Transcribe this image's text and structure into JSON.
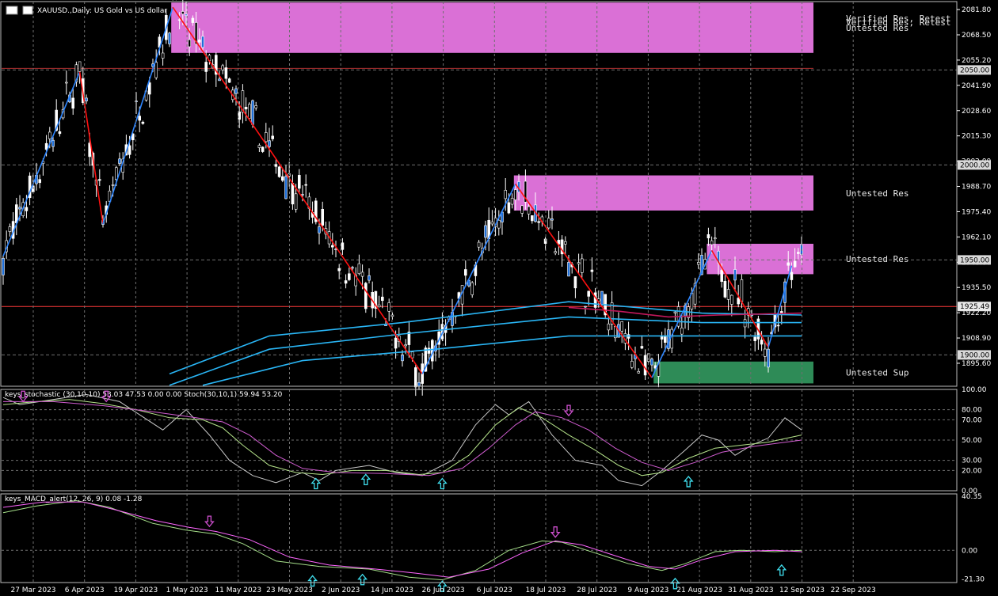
{
  "window": {
    "title": "XAUUSD.,Daily:  US Gold vs US dollar",
    "toolbar_icons": [
      "chart-grid-icon",
      "chart-flag-icon"
    ]
  },
  "colors": {
    "background": "#000000",
    "grid": "#6f6f6f",
    "axis_text": "#ffffff",
    "bull_body": "#000000",
    "bear_body": "#ffffff",
    "candle_outline": "#ffffff",
    "blue_candle": "#1e6fd9",
    "zigzag_up": "#2e86ff",
    "zigzag_down": "#ff1010",
    "resistance_zone": "#da70d6",
    "support_zone": "#2e8b57",
    "ema_cyan": "#29b6f6",
    "ema_red": "#c2185b",
    "stoch_white": "#c8c8c8",
    "stoch_green": "#b5e38a",
    "stoch_magenta": "#d05cd0",
    "macd_green": "#a6e08a",
    "macd_magenta": "#ff66ff",
    "arrow_up": "#40e0f0",
    "arrow_down": "#d050d0",
    "price_line": "#ff3b3b",
    "level_label_bg": "#d9d9d9"
  },
  "chart_data": [
    {
      "type": "candlestick",
      "title": "XAUUSD.,Daily:  US Gold vs US dollar",
      "ylim": [
        1883.5,
        2086.0
      ],
      "y_ticks": [
        "2081.80",
        "2068.50",
        "2055.20",
        "2041.90",
        "2028.60",
        "2015.30",
        "2002.00",
        "1988.70",
        "1975.40",
        "1962.10",
        "1948.80",
        "1935.50",
        "1922.20",
        "1908.90",
        "1895.60"
      ],
      "level_labels": [
        {
          "price": 2050.0,
          "label": "2050.00"
        },
        {
          "price": 2000.0,
          "label": "2000.00"
        },
        {
          "price": 1950.0,
          "label": "1950.00"
        },
        {
          "price": 1900.0,
          "label": "1900.00"
        }
      ],
      "current_price": {
        "price": 1925.49,
        "label": "1925.49"
      },
      "x_labels": [
        "27 Mar 2023",
        "6 Apr 2023",
        "19 Apr 2023",
        "1 May 2023",
        "11 May 2023",
        "23 May 2023",
        "2 Jun 2023",
        "14 Jun 2023",
        "26 Jun 2023",
        "6 Jul 2023",
        "18 Jul 2023",
        "28 Jul 2023",
        "9 Aug 2023",
        "21 Aug 2023",
        "31 Aug 2023",
        "12 Sep 2023",
        "22 Sep 2023"
      ],
      "zones": [
        {
          "kind": "resistance",
          "top": 2085.5,
          "bottom": 2059.0,
          "from_bar": 51,
          "label": "Untested Res"
        },
        {
          "kind": "resistance",
          "top": 1994.5,
          "bottom": 1976.0,
          "from_bar": 154,
          "label": "Untested Res"
        },
        {
          "kind": "resistance",
          "top": 1958.5,
          "bottom": 1942.5,
          "from_bar": 212,
          "label": "Untested Res"
        },
        {
          "kind": "support",
          "top": 1896.5,
          "bottom": 1885.0,
          "from_bar": 196,
          "label": "Untested Sup"
        }
      ],
      "zone_notes": [
        "Verified Res, Retest",
        "Verified Res, Retest"
      ],
      "zigzag": [
        [
          0,
          1952
        ],
        [
          23,
          2049
        ],
        [
          30,
          1969
        ],
        [
          51,
          2083
        ],
        [
          126,
          1890
        ],
        [
          154,
          1990
        ],
        [
          195,
          1888
        ],
        [
          213,
          1955
        ],
        [
          230,
          1904
        ],
        [
          237,
          1947
        ]
      ],
      "series": [
        {
          "name": "cyan-ma-1",
          "values": [
            [
              50,
              1890
            ],
            [
              80,
              1910
            ],
            [
              120,
              1917
            ],
            [
              170,
              1928
            ],
            [
              210,
              1922
            ],
            [
              240,
              1921
            ]
          ]
        },
        {
          "name": "cyan-ma-2",
          "values": [
            [
              50,
              1884
            ],
            [
              80,
              1903
            ],
            [
              120,
              1911
            ],
            [
              170,
              1920
            ],
            [
              210,
              1917
            ],
            [
              240,
              1917
            ]
          ]
        },
        {
          "name": "cyan-ma-3",
          "values": [
            [
              60,
              1884
            ],
            [
              90,
              1897
            ],
            [
              130,
              1903
            ],
            [
              170,
              1910
            ],
            [
              210,
              1910
            ],
            [
              240,
              1910
            ]
          ]
        },
        {
          "name": "red-ma",
          "values": [
            [
              170,
              1925
            ],
            [
              185,
              1923
            ],
            [
              200,
              1920
            ],
            [
              215,
              1921
            ],
            [
              240,
              1922
            ]
          ]
        }
      ]
    },
    {
      "type": "line",
      "title": "keys_stochastic (30,10,10) 53.03 47.53 0.00 0.00 Stoch(30,10,1) 59.94 53.20",
      "ylim": [
        0,
        100
      ],
      "y_ticks": [
        "100.00",
        "80.00",
        "70.00",
        "50.00",
        "30.00",
        "20.00",
        "0.00"
      ],
      "series": [
        {
          "name": "stoch-white",
          "values": [
            [
              0,
              92
            ],
            [
              5,
              85
            ],
            [
              15,
              90
            ],
            [
              25,
              95
            ],
            [
              35,
              88
            ],
            [
              48,
              60
            ],
            [
              55,
              80
            ],
            [
              62,
              55
            ],
            [
              68,
              30
            ],
            [
              75,
              15
            ],
            [
              82,
              8
            ],
            [
              90,
              18
            ],
            [
              95,
              10
            ],
            [
              100,
              20
            ],
            [
              110,
              25
            ],
            [
              118,
              18
            ],
            [
              126,
              15
            ],
            [
              135,
              30
            ],
            [
              142,
              65
            ],
            [
              148,
              85
            ],
            [
              152,
              75
            ],
            [
              158,
              88
            ],
            [
              165,
              55
            ],
            [
              172,
              30
            ],
            [
              180,
              25
            ],
            [
              185,
              10
            ],
            [
              192,
              5
            ],
            [
              198,
              20
            ],
            [
              205,
              40
            ],
            [
              210,
              55
            ],
            [
              215,
              50
            ],
            [
              220,
              35
            ],
            [
              225,
              45
            ],
            [
              230,
              52
            ],
            [
              235,
              72
            ],
            [
              240,
              60
            ]
          ]
        },
        {
          "name": "stoch-green",
          "values": [
            [
              0,
              85
            ],
            [
              10,
              88
            ],
            [
              20,
              90
            ],
            [
              30,
              86
            ],
            [
              40,
              80
            ],
            [
              50,
              72
            ],
            [
              60,
              70
            ],
            [
              66,
              62
            ],
            [
              72,
              45
            ],
            [
              80,
              25
            ],
            [
              88,
              18
            ],
            [
              96,
              16
            ],
            [
              105,
              20
            ],
            [
              115,
              20
            ],
            [
              125,
              16
            ],
            [
              132,
              18
            ],
            [
              140,
              35
            ],
            [
              148,
              65
            ],
            [
              155,
              82
            ],
            [
              162,
              72
            ],
            [
              170,
              55
            ],
            [
              178,
              40
            ],
            [
              185,
              25
            ],
            [
              192,
              15
            ],
            [
              198,
              18
            ],
            [
              206,
              32
            ],
            [
              214,
              42
            ],
            [
              222,
              45
            ],
            [
              230,
              48
            ],
            [
              240,
              55
            ]
          ]
        },
        {
          "name": "stoch-magenta",
          "values": [
            [
              0,
              88
            ],
            [
              15,
              88
            ],
            [
              30,
              84
            ],
            [
              45,
              78
            ],
            [
              58,
              72
            ],
            [
              66,
              68
            ],
            [
              74,
              55
            ],
            [
              82,
              35
            ],
            [
              90,
              22
            ],
            [
              100,
              18
            ],
            [
              115,
              17
            ],
            [
              128,
              15
            ],
            [
              138,
              22
            ],
            [
              146,
              42
            ],
            [
              154,
              65
            ],
            [
              160,
              78
            ],
            [
              168,
              72
            ],
            [
              176,
              60
            ],
            [
              184,
              42
            ],
            [
              192,
              28
            ],
            [
              200,
              20
            ],
            [
              208,
              28
            ],
            [
              216,
              38
            ],
            [
              226,
              44
            ],
            [
              240,
              50
            ]
          ]
        }
      ],
      "arrows": [
        {
          "bar": 6,
          "value": 92,
          "dir": "down"
        },
        {
          "bar": 31,
          "value": 92,
          "dir": "down"
        },
        {
          "bar": 94,
          "value": 16,
          "dir": "up"
        },
        {
          "bar": 109,
          "value": 20,
          "dir": "up"
        },
        {
          "bar": 132,
          "value": 16,
          "dir": "up"
        },
        {
          "bar": 170,
          "value": 78,
          "dir": "down"
        },
        {
          "bar": 206,
          "value": 18,
          "dir": "up"
        }
      ]
    },
    {
      "type": "line",
      "title": "keys_MACD_alert(12, 26, 9) 0.08 -1.28",
      "ylim": [
        -24,
        42
      ],
      "y_ticks": [
        "40.35",
        "0.00",
        "-21.30"
      ],
      "series": [
        {
          "name": "macd-green",
          "values": [
            [
              0,
              28
            ],
            [
              10,
              33
            ],
            [
              22,
              37
            ],
            [
              32,
              32
            ],
            [
              45,
              20
            ],
            [
              55,
              15
            ],
            [
              64,
              12
            ],
            [
              72,
              5
            ],
            [
              82,
              -8
            ],
            [
              95,
              -12
            ],
            [
              110,
              -14
            ],
            [
              122,
              -20
            ],
            [
              132,
              -22
            ],
            [
              142,
              -15
            ],
            [
              152,
              0
            ],
            [
              162,
              7
            ],
            [
              168,
              6
            ],
            [
              178,
              -2
            ],
            [
              188,
              -10
            ],
            [
              198,
              -15
            ],
            [
              205,
              -10
            ],
            [
              214,
              -1
            ],
            [
              222,
              0
            ],
            [
              232,
              -1
            ],
            [
              240,
              0
            ]
          ]
        },
        {
          "name": "macd-magenta",
          "values": [
            [
              0,
              32
            ],
            [
              12,
              36
            ],
            [
              24,
              36
            ],
            [
              34,
              30
            ],
            [
              46,
              22
            ],
            [
              56,
              17
            ],
            [
              64,
              14
            ],
            [
              74,
              8
            ],
            [
              86,
              -5
            ],
            [
              98,
              -11
            ],
            [
              112,
              -14
            ],
            [
              124,
              -17
            ],
            [
              134,
              -20
            ],
            [
              146,
              -14
            ],
            [
              156,
              -2
            ],
            [
              166,
              7
            ],
            [
              174,
              4
            ],
            [
              184,
              -4
            ],
            [
              194,
              -12
            ],
            [
              202,
              -14
            ],
            [
              210,
              -7
            ],
            [
              220,
              -1
            ],
            [
              232,
              0
            ],
            [
              240,
              -1
            ]
          ]
        }
      ],
      "arrows": [
        {
          "bar": 62,
          "value": 16,
          "dir": "down"
        },
        {
          "bar": 93,
          "value": -16,
          "dir": "up"
        },
        {
          "bar": 108,
          "value": -15,
          "dir": "up"
        },
        {
          "bar": 132,
          "value": -20,
          "dir": "up"
        },
        {
          "bar": 166,
          "value": 8,
          "dir": "down"
        },
        {
          "bar": 202,
          "value": -18,
          "dir": "up"
        },
        {
          "bar": 234,
          "value": -8,
          "dir": "up"
        }
      ]
    }
  ]
}
